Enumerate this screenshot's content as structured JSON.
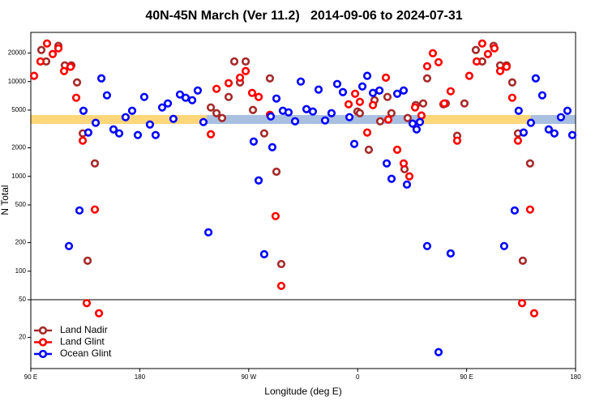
{
  "chart_data": {
    "type": "scatter",
    "title": "40N-45N March (Ver 11.2)   2014-09-06 to 2024-07-31",
    "x_label": "Longitude (deg E)",
    "y_label": "N Total",
    "xlim": [
      90,
      540
    ],
    "xticks": [
      {
        "value": 90,
        "label": "90 E"
      },
      {
        "value": 180,
        "label": "180"
      },
      {
        "value": 270,
        "label": "90 W"
      },
      {
        "value": 360,
        "label": "0"
      },
      {
        "value": 450,
        "label": "90 E"
      },
      {
        "value": 540,
        "label": "180"
      }
    ],
    "ylim": [
      9.4,
      33000
    ],
    "y_scale": "log",
    "yticks": [
      20,
      50,
      100,
      200,
      500,
      1000,
      2000,
      5000,
      10000,
      20000
    ],
    "reference_line": 50,
    "legend": "bottom-left",
    "series": [
      {
        "name": "Land Nadir",
        "color": "#a52a2a",
        "x": [
          98.7,
          102.7,
          112.8,
          118.1,
          123.5,
          128.2,
          132.9,
          136.9,
          142.9,
          238.7,
          243.4,
          248.0,
          253.4,
          258.1,
          262.8,
          267.5,
          273.5,
          278.2,
          282.8,
          287.5,
          292.9,
          296.9,
          359.8,
          361.8,
          369.2,
          373.9,
          378.6,
          384.6,
          387.9,
          398.7,
          401.3,
          408.0,
          414.1,
          417.4,
          430.8,
          432.8,
          442.2,
          448.2,
          457.6,
          462.9,
          472.3,
          477.7,
          483.0,
          487.7,
          492.4,
          496.4,
          502.4
        ],
        "values": [
          21500,
          16300,
          23800,
          14800,
          14800,
          9800,
          2840,
          129,
          1370,
          5330,
          4640,
          4120,
          6880,
          16300,
          9800,
          16300,
          5020,
          6880,
          2840,
          10800,
          1120,
          119,
          4830,
          4640,
          1910,
          6360,
          3810,
          6880,
          4640,
          1190,
          4120,
          5650,
          5880,
          10800,
          5760,
          5880,
          2680,
          5880,
          21500,
          16300,
          23800,
          14800,
          14800,
          9800,
          2840,
          129,
          1370
        ]
      },
      {
        "name": "Land Glint",
        "color": "#ff0000",
        "x": [
          92.7,
          98.0,
          103.4,
          108.1,
          112.8,
          117.5,
          122.8,
          127.5,
          132.9,
          136.2,
          142.9,
          146.3,
          238.7,
          243.4,
          253.4,
          262.8,
          267.5,
          272.8,
          278.2,
          287.5,
          292.2,
          296.9,
          352.5,
          357.9,
          361.8,
          367.9,
          372.6,
          383.3,
          385.3,
          392.7,
          398.0,
          402.7,
          407.4,
          412.7,
          417.4,
          422.1,
          426.8,
          431.5,
          436.8,
          442.2,
          452.2,
          458.3,
          462.9,
          467.6,
          473.0,
          477.7,
          483.0,
          487.7,
          492.4,
          495.8,
          502.4,
          505.8
        ],
        "values": [
          11500,
          16300,
          25200,
          19500,
          22400,
          12900,
          14300,
          6750,
          2380,
          46,
          447,
          36,
          2780,
          8380,
          9620,
          11000,
          12900,
          7590,
          6880,
          4460,
          381,
          70,
          5760,
          7440,
          6110,
          2900,
          5650,
          11000,
          3970,
          1910,
          1370,
          1000,
          5330,
          4380,
          14500,
          19900,
          16000,
          5880,
          7900,
          2380,
          11500,
          16300,
          25200,
          19500,
          22400,
          12900,
          14300,
          6750,
          2380,
          46,
          447,
          36
        ]
      },
      {
        "name": "Ocean Glint",
        "color": "#0000ff",
        "x": [
          121.5,
          130.2,
          133.5,
          137.5,
          143.6,
          148.3,
          152.9,
          158.3,
          163.0,
          168.3,
          173.7,
          178.4,
          183.7,
          188.4,
          193.1,
          198.5,
          203.2,
          207.8,
          213.2,
          217.9,
          223.3,
          227.9,
          232.6,
          236.7,
          274.1,
          278.2,
          282.8,
          288.2,
          289.5,
          292.9,
          298.2,
          302.9,
          308.3,
          313.0,
          317.7,
          323.0,
          327.7,
          333.1,
          338.4,
          343.1,
          347.8,
          353.2,
          357.2,
          363.9,
          367.9,
          372.6,
          378.0,
          384.0,
          388.0,
          392.7,
          398.0,
          400.7,
          405.4,
          408.7,
          411.4,
          417.4,
          426.8,
          436.8,
          481.0,
          489.7,
          493.0,
          497.1,
          503.1,
          507.1,
          512.5,
          517.8,
          522.5,
          527.9,
          533.3,
          537.3
        ],
        "values": [
          184,
          437,
          4920,
          2900,
          3670,
          10800,
          7160,
          3130,
          2840,
          4210,
          4920,
          2730,
          6880,
          3520,
          2730,
          5330,
          5880,
          4040,
          7300,
          6750,
          6360,
          8050,
          3740,
          257,
          2330,
          906,
          151,
          4290,
          2030,
          6620,
          4920,
          4730,
          3810,
          10000,
          5120,
          4830,
          8220,
          3890,
          4640,
          9430,
          7740,
          4210,
          2200,
          8880,
          11500,
          7590,
          8050,
          1370,
          942,
          7440,
          8050,
          820,
          3600,
          3130,
          3740,
          184,
          14,
          154,
          184,
          437,
          4920,
          2900,
          3670,
          10800,
          7160,
          3130,
          2840,
          4210,
          4920,
          2730
        ]
      }
    ]
  }
}
